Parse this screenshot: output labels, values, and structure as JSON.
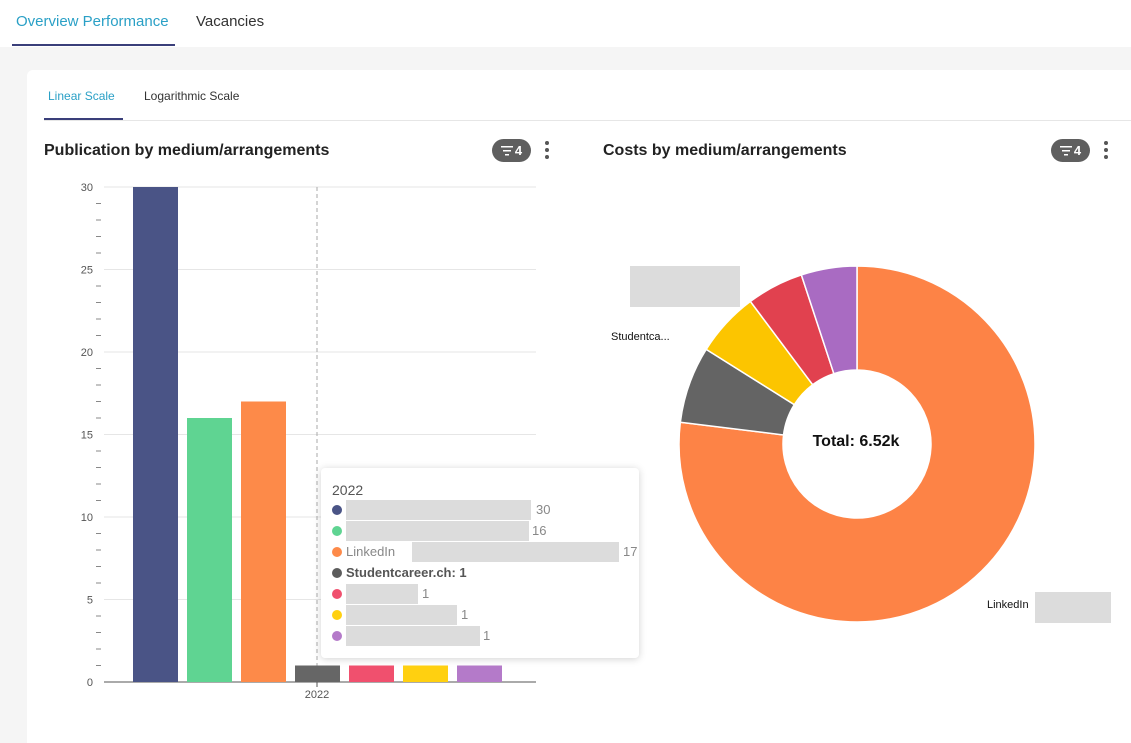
{
  "top_tabs": [
    {
      "label": "Overview Performance",
      "active": true
    },
    {
      "label": "Vacancies",
      "active": false
    }
  ],
  "sub_tabs": [
    {
      "label": "Linear Scale",
      "active": true
    },
    {
      "label": "Logarithmic Scale",
      "active": false
    }
  ],
  "left_chart": {
    "title": "Publication by medium/arrangements",
    "filter_count": "4"
  },
  "right_chart": {
    "title": "Costs by medium/arrangements",
    "filter_count": "4",
    "total_label": "Total: 6.52k",
    "labels": {
      "studentcareer": "Studentca...",
      "linkedin": "LinkedIn"
    }
  },
  "tooltip": {
    "title": "2022",
    "rows": [
      {
        "label": "",
        "value": "30",
        "color": "#4a5486",
        "bold": false
      },
      {
        "label": "",
        "value": "16",
        "color": "#5fd492",
        "bold": false
      },
      {
        "label": "LinkedIn",
        "value": "17",
        "color": "#fd8a49",
        "bold": false
      },
      {
        "label": "Studentcareer.ch: 1",
        "value": "",
        "color": "#5c5c5c",
        "bold": true
      },
      {
        "label": "",
        "value": "1",
        "color": "#f0506e",
        "bold": false
      },
      {
        "label": "",
        "value": "1",
        "color": "#ffd010",
        "bold": false
      },
      {
        "label": "",
        "value": "1",
        "color": "#b47ac9",
        "bold": false
      }
    ]
  },
  "icons": {
    "filter": "filter-icon",
    "more": "more-vertical-icon"
  },
  "chart_data": [
    {
      "type": "bar",
      "title": "Publication by medium/arrangements",
      "categories": [
        "2022"
      ],
      "series": [
        {
          "values": [
            30
          ],
          "color": "#4a5486"
        },
        {
          "values": [
            16
          ],
          "color": "#5fd492"
        },
        {
          "name": "LinkedIn",
          "values": [
            17
          ],
          "color": "#fd8a49"
        },
        {
          "name": "Studentcareer.ch",
          "values": [
            1
          ],
          "color": "#666666"
        },
        {
          "values": [
            1
          ],
          "color": "#f0506e"
        },
        {
          "values": [
            1
          ],
          "color": "#ffd010"
        },
        {
          "values": [
            1
          ],
          "color": "#b47ac9"
        }
      ],
      "ylim": [
        0,
        30
      ],
      "yticks": [
        "0",
        "5",
        "10",
        "15",
        "20",
        "25",
        "30"
      ],
      "grid": true
    },
    {
      "type": "pie",
      "title": "Costs by medium/arrangements",
      "center_label": "Total: 6.52k",
      "slices": [
        {
          "name": "LinkedIn",
          "share": 0.7695,
          "color": "#fd8346"
        },
        {
          "name": "Studentca...",
          "share": 0.0697,
          "color": "#646464"
        },
        {
          "name": "",
          "share": 0.0586,
          "color": "#fcc500"
        },
        {
          "name": "",
          "share": 0.0516,
          "color": "#e1414f"
        },
        {
          "name": "",
          "share": 0.0506,
          "color": "#a96bc2"
        }
      ]
    }
  ]
}
